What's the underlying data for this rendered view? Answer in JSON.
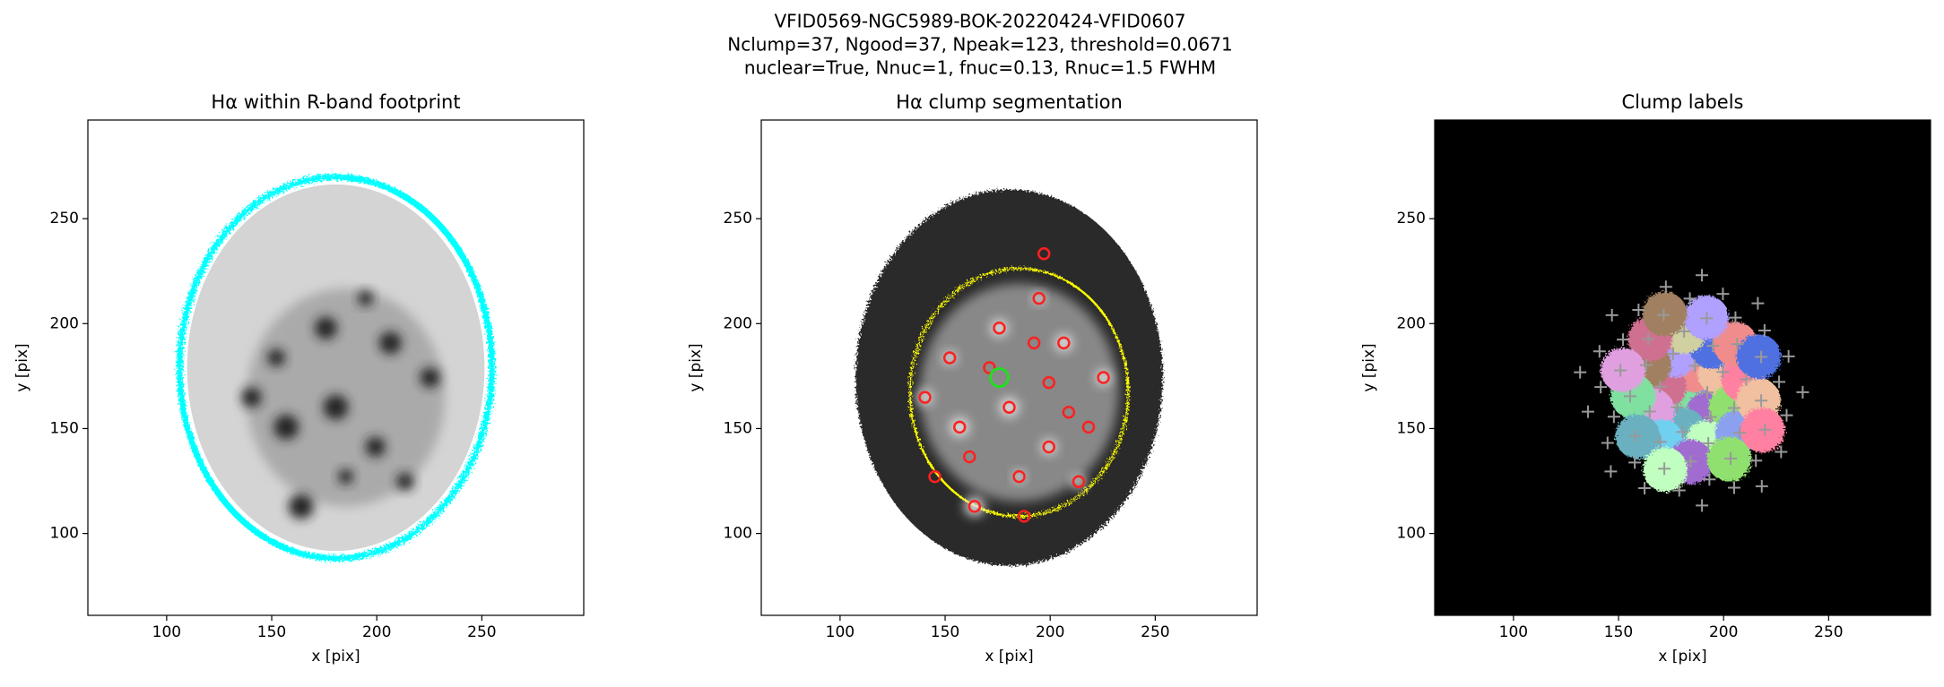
{
  "figure": {
    "suptitle": [
      "VFID0569-NGC5989-BOK-20220424-VFID0607",
      "Nclump=37, Ngood=37, Npeak=123, threshold=0.0671",
      "nuclear=True, Nnuc=1, fnuc=0.13, Rnuc=1.5 FWHM"
    ]
  },
  "chart_data": [
    {
      "type": "image",
      "title": "Hα within R-band footprint",
      "xlabel": "x [pix]",
      "ylabel": "y [pix]",
      "xlim": [
        62.5,
        298.5
      ],
      "ylim": [
        61,
        297
      ],
      "xticks": [
        100,
        150,
        200,
        250
      ],
      "yticks": [
        100,
        150,
        200,
        250
      ]
    },
    {
      "type": "image",
      "title": "Hα clump segmentation",
      "xlabel": "x [pix]",
      "ylabel": "y [pix]",
      "xlim": [
        62.5,
        298.5
      ],
      "ylim": [
        61,
        297
      ],
      "xticks": [
        100,
        150,
        200,
        250
      ],
      "yticks": [
        100,
        150,
        200,
        250
      ]
    },
    {
      "type": "image",
      "title": "Clump labels",
      "xlabel": "x [pix]",
      "ylabel": "y [pix]",
      "xlim": [
        62.5,
        298.5
      ],
      "ylim": [
        61,
        297
      ],
      "xticks": [
        100,
        150,
        200,
        250
      ],
      "yticks": [
        100,
        150,
        200,
        250
      ]
    }
  ]
}
